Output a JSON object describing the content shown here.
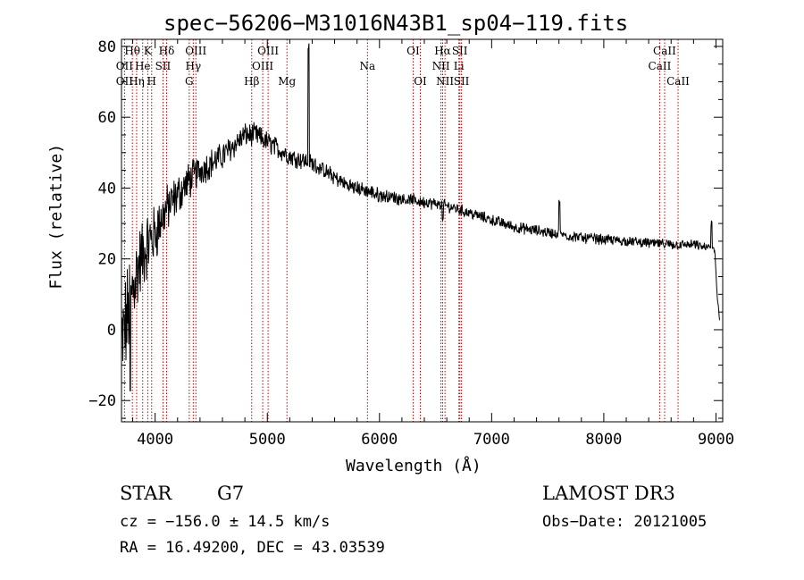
{
  "chart_data": {
    "type": "line",
    "title": "spec−56206−M31016N43B1_sp04−119.fits",
    "xlabel": "Wavelength (Å)",
    "ylabel": "Flux (relative)",
    "xlim": [
      3700,
      9060
    ],
    "ylim": [
      -26,
      82
    ],
    "x_ticks": [
      4000,
      5000,
      6000,
      7000,
      8000,
      9000
    ],
    "x_tick_labels": [
      "4000",
      "5000",
      "6000",
      "7000",
      "8000",
      "9000"
    ],
    "y_ticks": [
      -20,
      0,
      20,
      40,
      60,
      80
    ],
    "y_tick_labels": [
      "−20",
      "0",
      "20",
      "40",
      "60",
      "80"
    ],
    "spectrum_anchors": [
      [
        3700,
        -5
      ],
      [
        3760,
        5
      ],
      [
        3800,
        12
      ],
      [
        3850,
        18
      ],
      [
        3900,
        22
      ],
      [
        3950,
        25
      ],
      [
        4000,
        27
      ],
      [
        4050,
        31
      ],
      [
        4100,
        34
      ],
      [
        4200,
        38
      ],
      [
        4300,
        42
      ],
      [
        4400,
        45
      ],
      [
        4500,
        47
      ],
      [
        4600,
        49
      ],
      [
        4700,
        52
      ],
      [
        4800,
        55
      ],
      [
        4900,
        55
      ],
      [
        5000,
        53
      ],
      [
        5100,
        51
      ],
      [
        5200,
        49
      ],
      [
        5300,
        48
      ],
      [
        5400,
        47
      ],
      [
        5500,
        45
      ],
      [
        5600,
        43
      ],
      [
        5700,
        41
      ],
      [
        5800,
        40
      ],
      [
        5900,
        39
      ],
      [
        6000,
        38
      ],
      [
        6200,
        37
      ],
      [
        6400,
        36
      ],
      [
        6600,
        35
      ],
      [
        6800,
        33
      ],
      [
        7000,
        31
      ],
      [
        7200,
        29
      ],
      [
        7400,
        28
      ],
      [
        7600,
        27
      ],
      [
        7800,
        26
      ],
      [
        8000,
        25.5
      ],
      [
        8200,
        25
      ],
      [
        8400,
        24.5
      ],
      [
        8600,
        24
      ],
      [
        8800,
        24
      ],
      [
        8950,
        23
      ],
      [
        8990,
        22
      ],
      [
        9010,
        10
      ],
      [
        9030,
        4
      ]
    ],
    "noise_model": [
      [
        3700,
        14
      ],
      [
        3900,
        9
      ],
      [
        4100,
        6
      ],
      [
        4400,
        4
      ],
      [
        4800,
        3
      ],
      [
        5500,
        2
      ],
      [
        6500,
        1.5
      ],
      [
        9000,
        1.2
      ]
    ],
    "features": [
      {
        "wl": 5368,
        "value": 80,
        "note": "spike"
      },
      {
        "wl": 7605,
        "value": 36,
        "note": "spike"
      },
      {
        "wl": 8960,
        "value": 30,
        "note": "spike"
      },
      {
        "wl": 3778,
        "value": -17,
        "note": "dip"
      },
      {
        "wl": 6563,
        "value": 31,
        "note": "dip"
      }
    ],
    "spectral_lines": [
      {
        "label": "Hθ",
        "wl": 3797,
        "row": 1
      },
      {
        "label": "OII",
        "wl": 3727,
        "row": 2
      },
      {
        "label": "OII",
        "wl": 3727,
        "row": 3
      },
      {
        "label": "He",
        "wl": 3889,
        "row": 2
      },
      {
        "label": "Hη",
        "wl": 3835,
        "row": 3
      },
      {
        "label": "K",
        "wl": 3934,
        "row": 1
      },
      {
        "label": "H",
        "wl": 3969,
        "row": 3
      },
      {
        "label": "SII",
        "wl": 4070,
        "row": 2
      },
      {
        "label": "Hδ",
        "wl": 4102,
        "row": 1
      },
      {
        "label": "OIII",
        "wl": 4363,
        "row": 1
      },
      {
        "label": "Hγ",
        "wl": 4340,
        "row": 2
      },
      {
        "label": "G",
        "wl": 4304,
        "row": 3
      },
      {
        "label": "Hβ",
        "wl": 4861,
        "row": 3
      },
      {
        "label": "OIII",
        "wl": 5007,
        "row": 1
      },
      {
        "label": "OIII",
        "wl": 4959,
        "row": 2
      },
      {
        "label": "Mg",
        "wl": 5175,
        "row": 3
      },
      {
        "label": "Na",
        "wl": 5893,
        "row": 2
      },
      {
        "label": "OI",
        "wl": 6300,
        "row": 1
      },
      {
        "label": "OI",
        "wl": 6364,
        "row": 3
      },
      {
        "label": "Hα",
        "wl": 6563,
        "row": 1
      },
      {
        "label": "NII",
        "wl": 6548,
        "row": 2
      },
      {
        "label": "NII",
        "wl": 6584,
        "row": 3
      },
      {
        "label": "SII",
        "wl": 6716,
        "row": 1
      },
      {
        "label": "Li",
        "wl": 6708,
        "row": 2
      },
      {
        "label": "SII",
        "wl": 6731,
        "row": 3
      },
      {
        "label": "CaII",
        "wl": 8542,
        "row": 1
      },
      {
        "label": "CaII",
        "wl": 8498,
        "row": 2
      },
      {
        "label": "CaII",
        "wl": 8662,
        "row": 3
      }
    ]
  },
  "info": {
    "object_class": "STAR",
    "subclass": "G7",
    "survey": "LAMOST DR3",
    "redshift": "cz = −156.0 ± 14.5 km/s",
    "obs_date": "Obs−Date: 20121005",
    "coords": "RA =  16.49200, DEC =  43.03539"
  }
}
